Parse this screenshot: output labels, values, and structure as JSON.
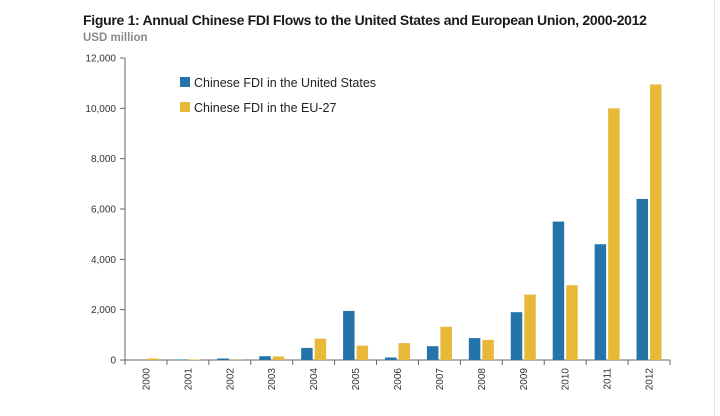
{
  "title": "Figure 1: Annual Chinese FDI Flows to the United States and European Union, 2000-2012",
  "subtitle": "USD million",
  "colors": {
    "us": "#2574a9",
    "eu": "#e8b838",
    "axis": "#666666"
  },
  "chart_data": {
    "type": "bar",
    "title": "Figure 1: Annual Chinese FDI Flows to the United States and European Union, 2000-2012",
    "ylabel": "USD million",
    "xlabel": "",
    "ylim": [
      0,
      12000
    ],
    "yticks": [
      0,
      2000,
      4000,
      6000,
      8000,
      10000,
      12000
    ],
    "ytick_labels": [
      "0",
      "2,000",
      "4,000",
      "6,000",
      "8,000",
      "10,000",
      "12,000"
    ],
    "grid": false,
    "legend_position": "top-left",
    "categories": [
      "2000",
      "2001",
      "2002",
      "2003",
      "2004",
      "2005",
      "2006",
      "2007",
      "2008",
      "2009",
      "2010",
      "2011",
      "2012"
    ],
    "series": [
      {
        "name": "Chinese FDI in the United States",
        "color": "#2574a9",
        "values": [
          0,
          20,
          60,
          150,
          480,
          1950,
          100,
          550,
          870,
          1900,
          5500,
          4600,
          6400
        ]
      },
      {
        "name": "Chinese FDI in the EU-27",
        "color": "#e8b838",
        "values": [
          60,
          20,
          10,
          140,
          850,
          570,
          670,
          1320,
          800,
          2600,
          2970,
          10000,
          10950
        ]
      }
    ]
  }
}
